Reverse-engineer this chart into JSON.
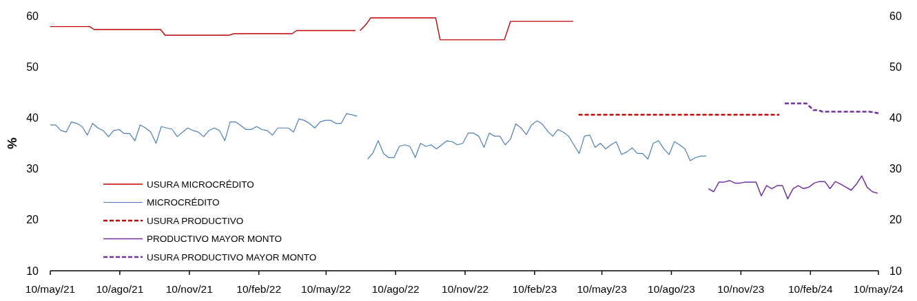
{
  "chart_data": {
    "type": "line",
    "ylabel": "%",
    "legend": "bottom left",
    "tick_labels": true,
    "xlim": [
      "2021-05-10",
      "2024-05-10"
    ],
    "xticks": [
      {
        "value": "2021-05-10",
        "label": "10/may/21"
      },
      {
        "value": "2021-08-10",
        "label": "10/ago/21"
      },
      {
        "value": "2021-11-10",
        "label": "10/nov/21"
      },
      {
        "value": "2022-02-10",
        "label": "10/feb/22"
      },
      {
        "value": "2022-05-10",
        "label": "10/may/22"
      },
      {
        "value": "2022-08-10",
        "label": "10/ago/22"
      },
      {
        "value": "2022-11-10",
        "label": "10/nov/22"
      },
      {
        "value": "2023-02-10",
        "label": "10/feb/23"
      },
      {
        "value": "2023-05-10",
        "label": "10/may/23"
      },
      {
        "value": "2023-08-10",
        "label": "10/ago/23"
      },
      {
        "value": "2023-11-10",
        "label": "10/nov/23"
      },
      {
        "value": "2024-02-10",
        "label": "10/feb/24"
      },
      {
        "value": "2024-05-10",
        "label": "10/may/24"
      }
    ],
    "ylim": [
      10,
      60
    ],
    "yticks": [
      10,
      20,
      30,
      40,
      50,
      60
    ],
    "y2lim": [
      10,
      60
    ],
    "y2ticks": [
      10,
      20,
      30,
      40,
      50,
      60
    ],
    "series": [
      {
        "name": "USURA MICROCRÉDITO",
        "color": "#c00000",
        "line_style": "solid",
        "x": [
          "2021-05-10",
          "2021-07-01",
          "2021-07-07",
          "2021-10-03",
          "2021-10-09",
          "2022-01-02",
          "2022-01-08",
          "2022-03-26",
          "2022-04-01",
          "2022-06-18",
          "2022-06-21",
          "2022-06-24",
          "2022-07-02",
          "2022-07-08",
          "2022-10-02",
          "2022-10-08",
          "2023-01-01",
          "2023-01-09",
          "2023-04-02"
        ],
        "values": [
          57.9,
          57.9,
          57.3,
          57.3,
          56.2,
          56.2,
          56.5,
          56.5,
          57.1,
          57.1,
          null,
          57.1,
          58.3,
          59.6,
          59.6,
          55.3,
          55.3,
          58.9,
          58.9
        ]
      },
      {
        "name": "MICROCRÉDITO",
        "color": "#4a7ebb",
        "line_style": "solid",
        "x": [
          "2021-05-10",
          "2021-05-17",
          "2021-05-24",
          "2021-05-31",
          "2021-06-07",
          "2021-06-14",
          "2021-06-21",
          "2021-06-28",
          "2021-07-05",
          "2021-07-12",
          "2021-07-19",
          "2021-07-26",
          "2021-08-02",
          "2021-08-09",
          "2021-08-16",
          "2021-08-23",
          "2021-08-30",
          "2021-09-06",
          "2021-09-13",
          "2021-09-20",
          "2021-09-27",
          "2021-10-04",
          "2021-10-11",
          "2021-10-18",
          "2021-10-25",
          "2021-11-01",
          "2021-11-08",
          "2021-11-15",
          "2021-11-22",
          "2021-11-29",
          "2021-12-06",
          "2021-12-13",
          "2021-12-20",
          "2021-12-27",
          "2022-01-03",
          "2022-01-10",
          "2022-01-17",
          "2022-01-24",
          "2022-01-31",
          "2022-02-07",
          "2022-02-14",
          "2022-02-21",
          "2022-02-28",
          "2022-03-07",
          "2022-03-14",
          "2022-03-21",
          "2022-03-28",
          "2022-04-04",
          "2022-04-11",
          "2022-04-18",
          "2022-04-25",
          "2022-05-02",
          "2022-05-09",
          "2022-05-16",
          "2022-05-23",
          "2022-05-30",
          "2022-06-06",
          "2022-06-13",
          "2022-06-20",
          "2022-06-27",
          "2022-07-04",
          "2022-07-11",
          "2022-07-18",
          "2022-07-25",
          "2022-08-01",
          "2022-08-08",
          "2022-08-15",
          "2022-08-22",
          "2022-08-29",
          "2022-09-05",
          "2022-09-12",
          "2022-09-19",
          "2022-09-26",
          "2022-10-03",
          "2022-10-10",
          "2022-10-17",
          "2022-10-24",
          "2022-10-31",
          "2022-11-07",
          "2022-11-14",
          "2022-11-21",
          "2022-11-28",
          "2022-12-05",
          "2022-12-12",
          "2022-12-19",
          "2022-12-26",
          "2023-01-02",
          "2023-01-09",
          "2023-01-16",
          "2023-01-23",
          "2023-01-30",
          "2023-02-06",
          "2023-02-13",
          "2023-02-20",
          "2023-02-27",
          "2023-03-06",
          "2023-03-13",
          "2023-03-20",
          "2023-03-27",
          "2023-04-03",
          "2023-04-10",
          "2023-04-17",
          "2023-04-24",
          "2023-05-01",
          "2023-05-08",
          "2023-05-15",
          "2023-05-22",
          "2023-05-29",
          "2023-06-05",
          "2023-06-12",
          "2023-06-19",
          "2023-06-26",
          "2023-07-03",
          "2023-07-10",
          "2023-07-17",
          "2023-07-24",
          "2023-07-31",
          "2023-08-07",
          "2023-08-14",
          "2023-08-21",
          "2023-08-28",
          "2023-09-04",
          "2023-09-11",
          "2023-09-18",
          "2023-09-25"
        ],
        "values": [
          38.6,
          38.6,
          37.5,
          37.2,
          39.2,
          38.9,
          38.3,
          36.6,
          38.9,
          38.0,
          37.5,
          36.3,
          37.5,
          37.7,
          36.9,
          36.9,
          35.5,
          38.6,
          38.0,
          37.2,
          35.0,
          38.3,
          38.0,
          37.8,
          36.3,
          37.2,
          38.0,
          37.5,
          37.2,
          36.3,
          37.5,
          38.0,
          37.5,
          35.5,
          39.2,
          39.2,
          38.5,
          37.7,
          37.7,
          38.3,
          37.7,
          37.5,
          36.6,
          38.0,
          38.0,
          38.0,
          37.2,
          39.8,
          39.5,
          38.9,
          38.0,
          39.2,
          39.5,
          39.5,
          38.9,
          38.9,
          40.8,
          40.6,
          40.3,
          null,
          31.9,
          33.1,
          35.5,
          33.0,
          32.2,
          32.2,
          34.4,
          34.7,
          34.4,
          32.2,
          35.0,
          34.4,
          34.7,
          33.9,
          34.7,
          35.5,
          35.3,
          34.7,
          35.0,
          37.0,
          37.0,
          36.4,
          34.2,
          37.0,
          36.4,
          36.4,
          34.7,
          35.8,
          38.8,
          38.0,
          36.7,
          38.6,
          39.4,
          38.8,
          37.4,
          36.4,
          37.7,
          37.2,
          36.4,
          34.7,
          33.0,
          36.4,
          36.6,
          34.2,
          35.0,
          33.9,
          34.7,
          35.3,
          32.8,
          33.3,
          34.1,
          33.0,
          33.0,
          31.9,
          35.0,
          35.5,
          33.9,
          32.8,
          35.3,
          34.7,
          33.9,
          31.6,
          32.2,
          32.5,
          32.5
        ]
      },
      {
        "name": "USURA PRODUCTIVO",
        "color": "#c00000",
        "line_style": "dashed",
        "x": [
          "2023-04-09",
          "2023-12-31"
        ],
        "values": [
          40.6,
          40.6
        ]
      },
      {
        "name": "PRODUCTIVO MAYOR MONTO",
        "color": "#7030a0",
        "line_style": "solid",
        "x": [
          "2023-09-28",
          "2023-10-05",
          "2023-10-12",
          "2023-10-19",
          "2023-10-26",
          "2023-11-02",
          "2023-11-09",
          "2023-11-16",
          "2023-11-23",
          "2023-11-30",
          "2023-12-07",
          "2023-12-14",
          "2023-12-21",
          "2023-12-28",
          "2024-01-04",
          "2024-01-11",
          "2024-01-18",
          "2024-01-25",
          "2024-02-01",
          "2024-02-08",
          "2024-02-15",
          "2024-02-22",
          "2024-02-29",
          "2024-03-07",
          "2024-03-14",
          "2024-03-21",
          "2024-03-28",
          "2024-04-04",
          "2024-04-11",
          "2024-04-18",
          "2024-04-25",
          "2024-05-02",
          "2024-05-09"
        ],
        "values": [
          26.1,
          25.5,
          27.4,
          27.4,
          27.7,
          27.2,
          27.2,
          27.4,
          27.4,
          27.4,
          24.7,
          26.7,
          26.1,
          26.7,
          26.7,
          24.1,
          26.1,
          26.7,
          26.1,
          26.4,
          27.2,
          27.5,
          27.5,
          26.1,
          27.5,
          27.0,
          26.4,
          25.8,
          27.0,
          28.6,
          26.4,
          25.5,
          25.2
        ]
      },
      {
        "name": "USURA PRODUCTIVO MAYOR MONTO",
        "color": "#7030a0",
        "line_style": "dashed",
        "x": [
          "2024-01-07",
          "2024-02-05",
          "2024-02-14",
          "2024-02-21",
          "2024-02-26",
          "2024-04-28",
          "2024-05-10"
        ],
        "values": [
          42.8,
          42.8,
          41.5,
          41.5,
          41.2,
          41.2,
          40.9
        ]
      }
    ]
  }
}
